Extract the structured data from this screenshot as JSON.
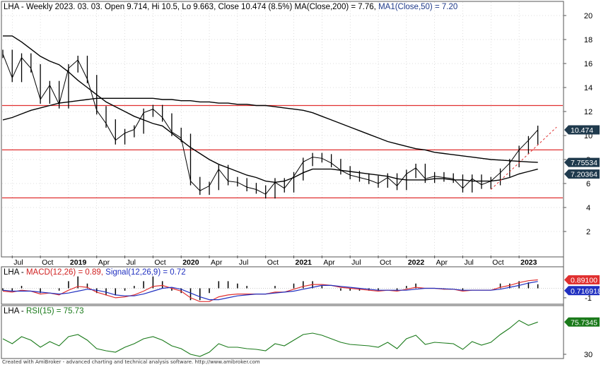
{
  "header": {
    "ticker": "LHA",
    "text": "LHA - Weekly 2023. 03. 03. Open 9.714, Hi 10.5, Lo 9.663, Close 10.474 (8.5%) MA(Close,200) = 7.76, ",
    "ma1_text": "MA1(Close,50) = 7.20"
  },
  "macd_header": {
    "prefix": "LHA - ",
    "macd_text": "MACD(12,26) = 0.89, ",
    "signal_text": "Signal(12,26,9) = 0.72"
  },
  "rsi_header": {
    "prefix": "LHA - ",
    "rsi_text": "RSI(15) = 75.73"
  },
  "footer": "Created with AmiBroker - advanced charting and technical analysis software. http://www.amibroker.com",
  "colors": {
    "price": "#000000",
    "support_lines": "#e03030",
    "trend_line": "#e03030",
    "macd": "#e03030",
    "signal": "#2030c0",
    "rsi": "#1a7a1a",
    "badge_close": "#1f3a4d",
    "badge_ma": "#1f3a4d",
    "badge_macd": "#e03030",
    "badge_signal": "#2030c0",
    "badge_rsi": "#1a7a1a",
    "grid": "#bbbbbb"
  },
  "chart_data": [
    {
      "type": "line",
      "title": "LHA - Weekly 2023. 03. 03.",
      "ylim": [
        0,
        21
      ],
      "y_ticks": [
        "2",
        "4",
        "6",
        "8",
        "10",
        "12",
        "14",
        "16",
        "18",
        "20"
      ],
      "x_ticks": [
        "Jul",
        "Oct",
        "2019",
        "Apr",
        "Jul",
        "Oct",
        "2020",
        "Apr",
        "Jul",
        "Oct",
        "2021",
        "Apr",
        "Jul",
        "Oct",
        "2022",
        "Apr",
        "Jul",
        "Oct",
        "2023"
      ],
      "x": [
        "2018-06",
        "2018-07",
        "2018-08",
        "2018-09",
        "2018-10",
        "2018-11",
        "2018-12",
        "2019-01",
        "2019-02",
        "2019-03",
        "2019-04",
        "2019-05",
        "2019-06",
        "2019-07",
        "2019-08",
        "2019-09",
        "2019-10",
        "2019-11",
        "2019-12",
        "2020-01",
        "2020-02",
        "2020-03",
        "2020-04",
        "2020-05",
        "2020-06",
        "2020-07",
        "2020-08",
        "2020-09",
        "2020-10",
        "2020-11",
        "2020-12",
        "2021-01",
        "2021-02",
        "2021-03",
        "2021-04",
        "2021-05",
        "2021-06",
        "2021-07",
        "2021-08",
        "2021-09",
        "2021-10",
        "2021-11",
        "2021-12",
        "2022-01",
        "2022-02",
        "2022-03",
        "2022-04",
        "2022-05",
        "2022-06",
        "2022-07",
        "2022-08",
        "2022-09",
        "2022-10",
        "2022-11",
        "2022-12",
        "2023-01",
        "2023-02",
        "2023-03"
      ],
      "series": [
        {
          "name": "Close",
          "values": [
            16.8,
            14.8,
            16.5,
            15.6,
            13.0,
            14.2,
            12.6,
            15.6,
            16.3,
            14.7,
            12.1,
            11.0,
            9.6,
            10.2,
            10.5,
            11.9,
            12.2,
            11.5,
            10.3,
            9.8,
            6.2,
            5.4,
            5.8,
            7.2,
            6.2,
            6.1,
            5.7,
            5.5,
            5.1,
            6.1,
            5.6,
            6.6,
            7.8,
            8.2,
            8.1,
            7.7,
            7.1,
            6.7,
            6.5,
            6.3,
            6.0,
            6.5,
            5.8,
            6.8,
            7.3,
            6.4,
            6.6,
            6.5,
            6.4,
            5.6,
            6.4,
            5.9,
            6.2,
            6.9,
            7.7,
            8.8,
            9.6,
            10.47
          ]
        },
        {
          "name": "MA(Close,200)",
          "values": [
            11.3,
            11.5,
            11.8,
            12.1,
            12.3,
            12.5,
            12.7,
            12.8,
            12.9,
            13.0,
            13.1,
            13.1,
            13.1,
            13.1,
            13.1,
            13.1,
            13.1,
            13.0,
            13.0,
            12.9,
            12.9,
            12.8,
            12.8,
            12.7,
            12.7,
            12.6,
            12.6,
            12.5,
            12.5,
            12.4,
            12.3,
            12.2,
            12.1,
            11.9,
            11.6,
            11.3,
            11.0,
            10.7,
            10.4,
            10.1,
            9.8,
            9.5,
            9.3,
            9.1,
            8.9,
            8.8,
            8.6,
            8.5,
            8.4,
            8.3,
            8.2,
            8.1,
            8.0,
            7.95,
            7.9,
            7.85,
            7.8,
            7.76
          ]
        },
        {
          "name": "MA1(Close,50)",
          "values": [
            18.3,
            18.3,
            17.8,
            17.2,
            16.6,
            16.2,
            15.9,
            15.3,
            14.6,
            14.0,
            13.4,
            12.8,
            12.4,
            12.0,
            11.6,
            11.3,
            11.0,
            10.8,
            10.2,
            9.6,
            9.0,
            8.5,
            8.0,
            7.6,
            7.3,
            7.0,
            6.7,
            6.5,
            6.2,
            6.1,
            6.2,
            6.5,
            6.9,
            7.2,
            7.2,
            7.2,
            7.1,
            7.0,
            6.9,
            6.8,
            6.7,
            6.6,
            6.4,
            6.3,
            6.3,
            6.3,
            6.4,
            6.4,
            6.3,
            6.3,
            6.2,
            6.2,
            6.2,
            6.3,
            6.5,
            6.8,
            7.0,
            7.2
          ]
        }
      ],
      "horizontal_lines": [
        12.5,
        8.8,
        4.8
      ],
      "trend_line": {
        "from": {
          "x": "2022-10",
          "y": 5.5
        },
        "to": {
          "x": "2023-05",
          "y": 10.7
        }
      },
      "badges": [
        "10.474",
        "7.75534",
        "7.20364"
      ]
    },
    {
      "type": "line",
      "title": "LHA - MACD(12,26) = 0.89, Signal(12,26,9) = 0.72",
      "ylim": [
        -1.6,
        1.3
      ],
      "y_ticks": [
        "-1"
      ],
      "series": [
        {
          "name": "MACD(12,26)",
          "values": [
            -0.3,
            -0.4,
            -0.2,
            -0.3,
            -0.6,
            -0.5,
            -0.7,
            -0.2,
            0.2,
            0.1,
            -0.4,
            -0.7,
            -1.0,
            -0.9,
            -0.7,
            -0.3,
            0.2,
            0.3,
            0.0,
            -0.3,
            -1.0,
            -1.4,
            -1.4,
            -0.9,
            -0.7,
            -0.6,
            -0.6,
            -0.6,
            -0.6,
            -0.4,
            -0.4,
            -0.1,
            0.2,
            0.4,
            0.4,
            0.3,
            0.1,
            0.0,
            -0.1,
            -0.2,
            -0.3,
            -0.2,
            -0.3,
            -0.1,
            0.1,
            0.0,
            0.0,
            -0.1,
            -0.1,
            -0.3,
            -0.2,
            -0.2,
            -0.2,
            0.1,
            0.3,
            0.6,
            0.8,
            0.89
          ]
        },
        {
          "name": "Signal(12,26,9)",
          "values": [
            -0.2,
            -0.3,
            -0.3,
            -0.3,
            -0.4,
            -0.5,
            -0.6,
            -0.5,
            -0.3,
            -0.1,
            -0.2,
            -0.4,
            -0.7,
            -0.8,
            -0.8,
            -0.6,
            -0.3,
            0.0,
            0.1,
            -0.1,
            -0.5,
            -0.9,
            -1.2,
            -1.2,
            -1.0,
            -0.8,
            -0.7,
            -0.6,
            -0.6,
            -0.5,
            -0.4,
            -0.3,
            -0.1,
            0.1,
            0.3,
            0.3,
            0.2,
            0.1,
            0.0,
            -0.1,
            -0.2,
            -0.2,
            -0.2,
            -0.2,
            -0.1,
            0.0,
            0.0,
            -0.05,
            -0.1,
            -0.2,
            -0.2,
            -0.2,
            -0.2,
            -0.1,
            0.1,
            0.3,
            0.55,
            0.72
          ]
        }
      ],
      "badges": [
        "0.89100",
        "0.716918"
      ]
    },
    {
      "type": "line",
      "title": "LHA - RSI(15) = 75.73",
      "ylim": [
        25,
        85
      ],
      "y_ticks": [
        "30"
      ],
      "series": [
        {
          "name": "RSI(15)",
          "values": [
            52,
            45,
            55,
            50,
            40,
            48,
            42,
            55,
            58,
            50,
            38,
            35,
            33,
            40,
            45,
            52,
            55,
            50,
            42,
            38,
            30,
            27,
            33,
            45,
            40,
            40,
            38,
            37,
            35,
            45,
            42,
            50,
            58,
            60,
            57,
            52,
            47,
            44,
            43,
            42,
            40,
            47,
            38,
            52,
            57,
            44,
            47,
            46,
            45,
            37,
            48,
            43,
            47,
            58,
            67,
            78,
            71,
            75.73
          ]
        }
      ],
      "badges": [
        "75.7345"
      ]
    }
  ]
}
